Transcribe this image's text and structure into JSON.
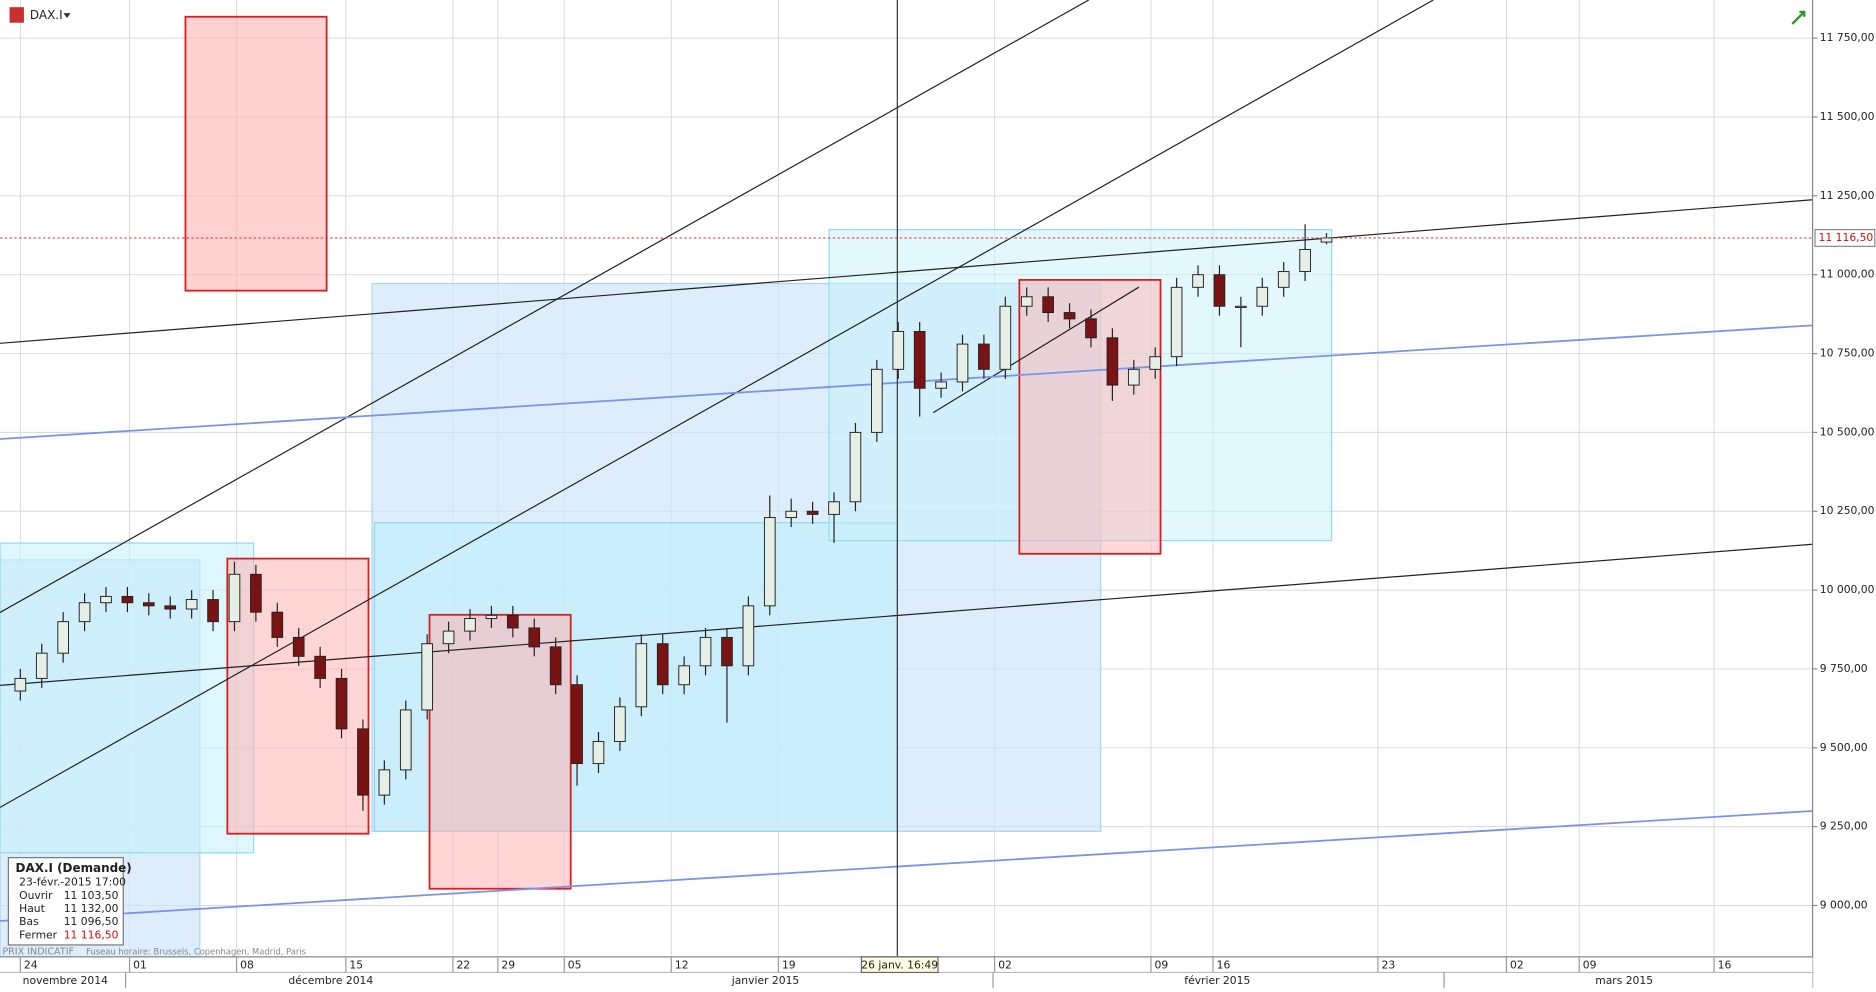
{
  "chart_data": {
    "type": "candlestick",
    "symbol": "DAX.I",
    "xlim": [
      -0.95,
      83.7
    ],
    "ylim": [
      8837,
      11871
    ],
    "grid": true,
    "up_color": "#e6efe6",
    "down_color": "#7a1414",
    "yticks": [
      {
        "value": 9000,
        "label": "9 000,00"
      },
      {
        "value": 9250,
        "label": "9 250,00"
      },
      {
        "value": 9500,
        "label": "9 500,00"
      },
      {
        "value": 9750,
        "label": "9 750,00"
      },
      {
        "value": 10000,
        "label": "10 000,00"
      },
      {
        "value": 10250,
        "label": "10 250,00"
      },
      {
        "value": 10500,
        "label": "10 500,00"
      },
      {
        "value": 10750,
        "label": "10 750,00"
      },
      {
        "value": 11000,
        "label": "11 000,00"
      },
      {
        "value": 11250,
        "label": "11 250,00"
      },
      {
        "value": 11500,
        "label": "11 500,00"
      },
      {
        "value": 11750,
        "label": "11 750,00"
      }
    ],
    "xticks": [
      {
        "value": 0,
        "label": "24"
      },
      {
        "value": 5.1,
        "label": "01"
      },
      {
        "value": 10.1,
        "label": "08"
      },
      {
        "value": 15.2,
        "label": "15"
      },
      {
        "value": 20.2,
        "label": "22"
      },
      {
        "value": 22.3,
        "label": "29"
      },
      {
        "value": 25.4,
        "label": "05"
      },
      {
        "value": 30.4,
        "label": "12"
      },
      {
        "value": 35.4,
        "label": "19"
      },
      {
        "value": 45.5,
        "label": "02"
      },
      {
        "value": 52.8,
        "label": "09"
      },
      {
        "value": 55.7,
        "label": "16"
      },
      {
        "value": 63.4,
        "label": "23"
      },
      {
        "value": 69.4,
        "label": "02"
      },
      {
        "value": 72.8,
        "label": "09"
      },
      {
        "value": 79.1,
        "label": "16"
      }
    ],
    "month_labels": [
      {
        "value": 2.1,
        "label": "novembre 2014"
      },
      {
        "value": 14.5,
        "label": "décembre 2014"
      },
      {
        "value": 34.8,
        "label": "janvier 2015"
      },
      {
        "value": 55.9,
        "label": "février 2015"
      },
      {
        "value": 74.9,
        "label": "mars 2015"
      }
    ],
    "open": [
      9680,
      9720,
      9800,
      9900,
      9960,
      9980,
      9960,
      9950,
      9940,
      9970,
      9900,
      10050,
      9930,
      9850,
      9790,
      9720,
      9560,
      9350,
      9430,
      9620,
      9830,
      9870,
      9910,
      9920,
      9880,
      9820,
      9700,
      9450,
      9520,
      9630,
      9830,
      9700,
      9760,
      9850,
      9760,
      9950,
      10230,
      10250,
      10240,
      10280,
      10500,
      10700,
      10820,
      10640,
      10660,
      10780,
      10700,
      10900,
      10930,
      10880,
      10860,
      10800,
      10650,
      10700,
      10740,
      10960,
      11000,
      10900,
      10900,
      10960,
      11010,
      11103.5
    ],
    "high": [
      9750,
      9830,
      9930,
      9990,
      10010,
      10010,
      9990,
      9980,
      10000,
      10000,
      10090,
      10080,
      9960,
      9880,
      9820,
      9750,
      9590,
      9460,
      9650,
      9860,
      9900,
      9940,
      9950,
      9950,
      9910,
      9850,
      9730,
      9550,
      9660,
      9860,
      9860,
      9790,
      9880,
      9880,
      9980,
      10300,
      10290,
      10280,
      10310,
      10530,
      10730,
      10850,
      10850,
      10690,
      10810,
      10810,
      10930,
      10960,
      10960,
      10910,
      10890,
      10830,
      10730,
      10770,
      10990,
      11030,
      11030,
      10930,
      10990,
      11040,
      11160,
      11132
    ],
    "low": [
      9650,
      9690,
      9770,
      9870,
      9930,
      9930,
      9920,
      9910,
      9910,
      9870,
      9870,
      9900,
      9820,
      9760,
      9690,
      9530,
      9300,
      9320,
      9400,
      9590,
      9800,
      9840,
      9880,
      9850,
      9790,
      9670,
      9380,
      9420,
      9490,
      9600,
      9670,
      9670,
      9730,
      9580,
      9730,
      9920,
      10200,
      10210,
      10150,
      10250,
      10470,
      10670,
      10550,
      10610,
      10630,
      10670,
      10670,
      10870,
      10850,
      10830,
      10770,
      10600,
      10620,
      10670,
      10710,
      10930,
      10870,
      10770,
      10870,
      10930,
      10980,
      11096.5
    ],
    "close": [
      9720,
      9800,
      9900,
      9960,
      9980,
      9960,
      9950,
      9940,
      9970,
      9900,
      10050,
      9930,
      9850,
      9790,
      9720,
      9560,
      9350,
      9430,
      9620,
      9830,
      9870,
      9910,
      9920,
      9880,
      9820,
      9700,
      9450,
      9520,
      9630,
      9830,
      9700,
      9760,
      9850,
      9760,
      9950,
      10230,
      10250,
      10240,
      10280,
      10500,
      10700,
      10820,
      10640,
      10660,
      10780,
      10700,
      10900,
      10930,
      10880,
      10860,
      10800,
      10650,
      10700,
      10740,
      10960,
      11000,
      10900,
      10900,
      10960,
      11010,
      11080,
      11116.5
    ],
    "last_price": {
      "value": 11116.5,
      "label": "11 116,50"
    },
    "crosshair_label": "26 janv. 16:49",
    "footer": {
      "indicative": "PRIX INDICATIF",
      "timezone": "Fuseau horaire: Brussels, Copenhagen, Madrid, Paris"
    },
    "info_box": {
      "title": "DAX.I (Demande)",
      "date": "23-févr.-2015 17:00",
      "rows": [
        [
          "Ouvrir",
          "11 103,50"
        ],
        [
          "Haut",
          "11 132,00"
        ],
        [
          "Bas",
          "11 096,50"
        ],
        [
          "Fermer",
          "11 116,50"
        ]
      ]
    }
  }
}
